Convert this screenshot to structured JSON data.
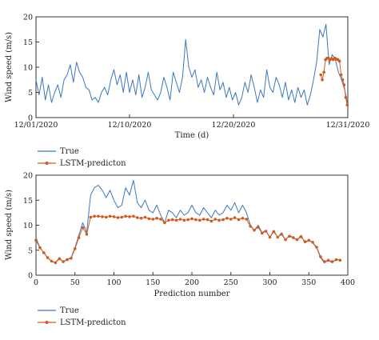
{
  "chart_data": [
    {
      "type": "line",
      "xlabel": "Time (d)",
      "ylabel": "Wind speed (m/s)",
      "xlim": [
        0,
        30
      ],
      "ylim": [
        0,
        20
      ],
      "yticks": [
        0,
        5,
        10,
        15,
        20
      ],
      "xticks": [
        0,
        9,
        19,
        30
      ],
      "xtick_labels": [
        "12/01/2020",
        "12/10/2020",
        "12/20/2020",
        "12/31/2020"
      ],
      "legend_position": "below-left",
      "series": [
        {
          "name": "True",
          "color": "#3a78c2",
          "marker": "none",
          "x": [
            0,
            0.3,
            0.6,
            0.9,
            1.2,
            1.5,
            1.8,
            2.1,
            2.4,
            2.7,
            3.0,
            3.3,
            3.6,
            3.9,
            4.2,
            4.5,
            4.8,
            5.1,
            5.4,
            5.7,
            6.0,
            6.3,
            6.6,
            6.9,
            7.2,
            7.5,
            7.8,
            8.1,
            8.4,
            8.7,
            9.0,
            9.3,
            9.6,
            9.9,
            10.2,
            10.5,
            10.8,
            11.1,
            11.4,
            11.7,
            12.0,
            12.3,
            12.6,
            12.9,
            13.2,
            13.5,
            13.8,
            14.1,
            14.4,
            14.7,
            15.0,
            15.3,
            15.6,
            15.9,
            16.2,
            16.5,
            16.8,
            17.1,
            17.4,
            17.7,
            18.0,
            18.3,
            18.6,
            18.9,
            19.2,
            19.5,
            19.8,
            20.1,
            20.4,
            20.7,
            21.0,
            21.3,
            21.6,
            21.9,
            22.2,
            22.5,
            22.8,
            23.1,
            23.4,
            23.7,
            24.0,
            24.3,
            24.6,
            24.9,
            25.2,
            25.5,
            25.8,
            26.1,
            26.4,
            26.7,
            27.0,
            27.3,
            27.6,
            27.9,
            28.2,
            28.5,
            28.8,
            29.1,
            29.4,
            29.7,
            30.0
          ],
          "y": [
            7.5,
            4.5,
            8,
            3.5,
            6.5,
            3,
            5,
            6.5,
            4,
            7.5,
            8.5,
            10.5,
            7,
            11,
            9,
            8,
            6,
            5.5,
            3.5,
            4,
            3,
            5,
            6,
            4.5,
            7.5,
            9.5,
            6.5,
            8.5,
            5,
            9,
            5,
            7.5,
            4.5,
            8.5,
            4,
            6,
            9,
            5.5,
            4.5,
            3.5,
            5,
            8,
            6,
            3.5,
            9,
            7,
            5,
            8,
            15.5,
            10,
            8,
            9.5,
            6,
            7.5,
            5,
            8,
            6,
            4.5,
            9,
            5.5,
            7,
            4,
            6,
            3.5,
            5,
            2.5,
            4,
            7,
            5,
            8.5,
            6,
            3,
            5.5,
            4,
            9.5,
            6,
            5,
            8,
            6.5,
            4,
            7,
            3.5,
            5.5,
            3,
            6,
            4,
            5.5,
            2.5,
            4.5,
            7.5,
            11,
            17.5,
            16,
            18.5,
            10.5,
            12.5,
            11.5,
            9,
            7.5,
            5.5,
            2.5
          ]
        },
        {
          "name": "LSTM-predicton",
          "color": "#d35a1c",
          "marker": "dot",
          "x": [
            27.4,
            27.55,
            27.7,
            27.85,
            28.0,
            28.15,
            28.3,
            28.45,
            28.6,
            28.75,
            28.9,
            29.05,
            29.2,
            29.35,
            29.5,
            29.65,
            29.8,
            29.95
          ],
          "y": [
            8.5,
            7.5,
            9,
            11.5,
            11.8,
            11.8,
            11.5,
            11.7,
            11.5,
            11.8,
            11.6,
            11.5,
            11.2,
            8.5,
            7.5,
            6.5,
            4,
            2.5
          ]
        }
      ]
    },
    {
      "type": "line",
      "xlabel": "Prediction number",
      "ylabel": "Wind speed (m/s)",
      "xlim": [
        0,
        400
      ],
      "ylim": [
        0,
        20
      ],
      "yticks": [
        0,
        5,
        10,
        15,
        20
      ],
      "xticks": [
        0,
        50,
        100,
        150,
        200,
        250,
        300,
        350,
        400
      ],
      "xtick_labels": [
        "0",
        "50",
        "100",
        "150",
        "200",
        "250",
        "300",
        "350",
        "400"
      ],
      "legend_position": "below-left",
      "series": [
        {
          "name": "True",
          "color": "#3a78c2",
          "marker": "none",
          "x": [
            0,
            5,
            10,
            15,
            20,
            25,
            30,
            35,
            40,
            45,
            50,
            55,
            60,
            65,
            70,
            75,
            80,
            85,
            90,
            95,
            100,
            105,
            110,
            115,
            120,
            125,
            130,
            135,
            140,
            145,
            150,
            155,
            160,
            165,
            170,
            175,
            180,
            185,
            190,
            195,
            200,
            205,
            210,
            215,
            220,
            225,
            230,
            235,
            240,
            245,
            250,
            255,
            260,
            265,
            270,
            275,
            280,
            285,
            290,
            295,
            300,
            305,
            310,
            315,
            320,
            325,
            330,
            335,
            340,
            345,
            350,
            355,
            360,
            365,
            370,
            375,
            380,
            385,
            390
          ],
          "y": [
            7.5,
            5.5,
            4.5,
            3.5,
            2.8,
            2.5,
            3.5,
            2.6,
            3.2,
            3.5,
            5.5,
            8,
            10.5,
            8.5,
            16,
            17.5,
            18,
            17,
            15.5,
            17,
            15,
            13.5,
            14,
            17.5,
            16,
            19,
            14.5,
            13.5,
            15,
            13,
            12.5,
            14,
            12,
            10.5,
            13,
            12.5,
            11.5,
            13,
            12,
            12.5,
            14,
            12.5,
            12,
            13.5,
            12.5,
            11.5,
            13,
            12,
            12.5,
            14,
            13,
            14.5,
            12.5,
            14,
            12.5,
            10,
            9,
            10,
            8.5,
            9,
            7.5,
            9,
            7.5,
            8.5,
            7,
            8,
            7.5,
            7,
            8,
            6.5,
            7,
            6.5,
            5.5,
            3.5,
            2.5,
            3,
            2.5,
            3.2,
            3
          ]
        },
        {
          "name": "LSTM-predicton",
          "color": "#d35a1c",
          "marker": "dot",
          "x": [
            0,
            5,
            10,
            15,
            20,
            25,
            30,
            35,
            40,
            45,
            50,
            55,
            60,
            65,
            70,
            75,
            80,
            85,
            90,
            95,
            100,
            105,
            110,
            115,
            120,
            125,
            130,
            135,
            140,
            145,
            150,
            155,
            160,
            165,
            170,
            175,
            180,
            185,
            190,
            195,
            200,
            205,
            210,
            215,
            220,
            225,
            230,
            235,
            240,
            245,
            250,
            255,
            260,
            265,
            270,
            275,
            280,
            285,
            290,
            295,
            300,
            305,
            310,
            315,
            320,
            325,
            330,
            335,
            340,
            345,
            350,
            355,
            360,
            365,
            370,
            375,
            380,
            385,
            390
          ],
          "y": [
            7,
            5.5,
            4.5,
            3.5,
            2.8,
            2.5,
            3.3,
            2.7,
            3.1,
            3.4,
            5.3,
            7.5,
            9.5,
            8.2,
            11.6,
            11.8,
            11.8,
            11.7,
            11.6,
            11.8,
            11.7,
            11.5,
            11.6,
            11.8,
            11.7,
            11.8,
            11.5,
            11.4,
            11.6,
            11.3,
            11.2,
            11.4,
            11.2,
            10.5,
            11,
            11.1,
            11,
            11.2,
            11,
            11.1,
            11.3,
            11.1,
            11,
            11.2,
            11.1,
            10.8,
            11.2,
            11,
            11.1,
            11.4,
            11.2,
            11.5,
            11.1,
            11.4,
            11.2,
            9.8,
            9,
            9.6,
            8.4,
            8.8,
            7.6,
            8.7,
            7.6,
            8.2,
            7.1,
            7.8,
            7.5,
            7.1,
            7.7,
            6.7,
            7,
            6.6,
            5.6,
            3.7,
            2.7,
            3,
            2.7,
            3.1,
            3
          ]
        }
      ]
    }
  ],
  "legend_true_label": "True",
  "legend_pred_label": "LSTM-predicton",
  "colors": {
    "true": "#3a78c2",
    "prediction": "#d35a1c",
    "axis": "#333333"
  }
}
